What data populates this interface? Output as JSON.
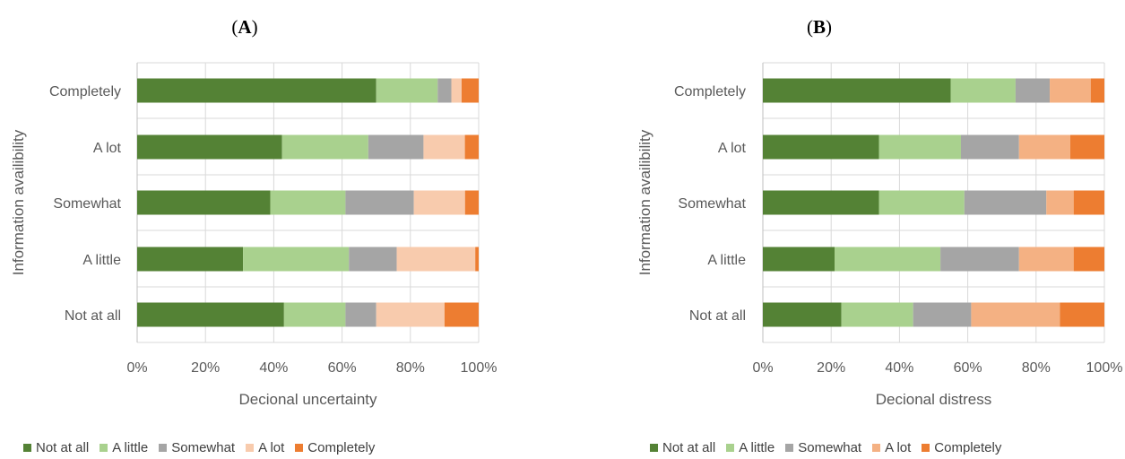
{
  "colors": {
    "Not at all": "#548235",
    "A little": "#A9D18E",
    "Somewhat": "#A5A5A5",
    "A lot": "#F8CBAD",
    "A lot (B)": "#F4B183",
    "Completely": "#ED7D31",
    "grid": "#D9D9D9",
    "axis_text": "#595959"
  },
  "chart_data": [
    {
      "type": "bar",
      "orientation": "horizontal",
      "stacking": "percent",
      "panel_label": "A",
      "title": "",
      "xlabel": "Decional uncertainty",
      "ylabel": "Information availibility",
      "categories": [
        "Completely",
        "A lot",
        "Somewhat",
        "A little",
        "Not at all"
      ],
      "x_ticks": [
        "0%",
        "20%",
        "40%",
        "60%",
        "80%",
        "100%"
      ],
      "xlim": [
        0,
        100
      ],
      "grid": true,
      "legend_position": "bottom",
      "series": [
        {
          "name": "Not at all",
          "values": [
            70,
            42,
            39,
            31,
            43
          ]
        },
        {
          "name": "A little",
          "values": [
            18,
            25,
            22,
            31,
            18
          ]
        },
        {
          "name": "Somewhat",
          "values": [
            4,
            16,
            20,
            14,
            9
          ]
        },
        {
          "name": "A lot",
          "values": [
            3,
            12,
            15,
            23,
            20
          ]
        },
        {
          "name": "Completely",
          "values": [
            5,
            4,
            4,
            1,
            10
          ]
        }
      ]
    },
    {
      "type": "bar",
      "orientation": "horizontal",
      "stacking": "percent",
      "panel_label": "B",
      "title": "",
      "xlabel": "Decional distress",
      "ylabel": "Information availibility",
      "categories": [
        "Completely",
        "A lot",
        "Somewhat",
        "A little",
        "Not at all"
      ],
      "x_ticks": [
        "0%",
        "20%",
        "40%",
        "60%",
        "80%",
        "100%"
      ],
      "xlim": [
        0,
        100
      ],
      "grid": true,
      "legend_position": "bottom",
      "series": [
        {
          "name": "Not at all",
          "values": [
            55,
            34,
            34,
            21,
            23
          ]
        },
        {
          "name": "A little",
          "values": [
            19,
            24,
            25,
            31,
            21
          ]
        },
        {
          "name": "Somewhat",
          "values": [
            10,
            17,
            24,
            23,
            17
          ]
        },
        {
          "name": "A lot",
          "values": [
            12,
            15,
            8,
            16,
            26
          ]
        },
        {
          "name": "Completely",
          "values": [
            4,
            10,
            9,
            9,
            13
          ]
        }
      ]
    }
  ]
}
